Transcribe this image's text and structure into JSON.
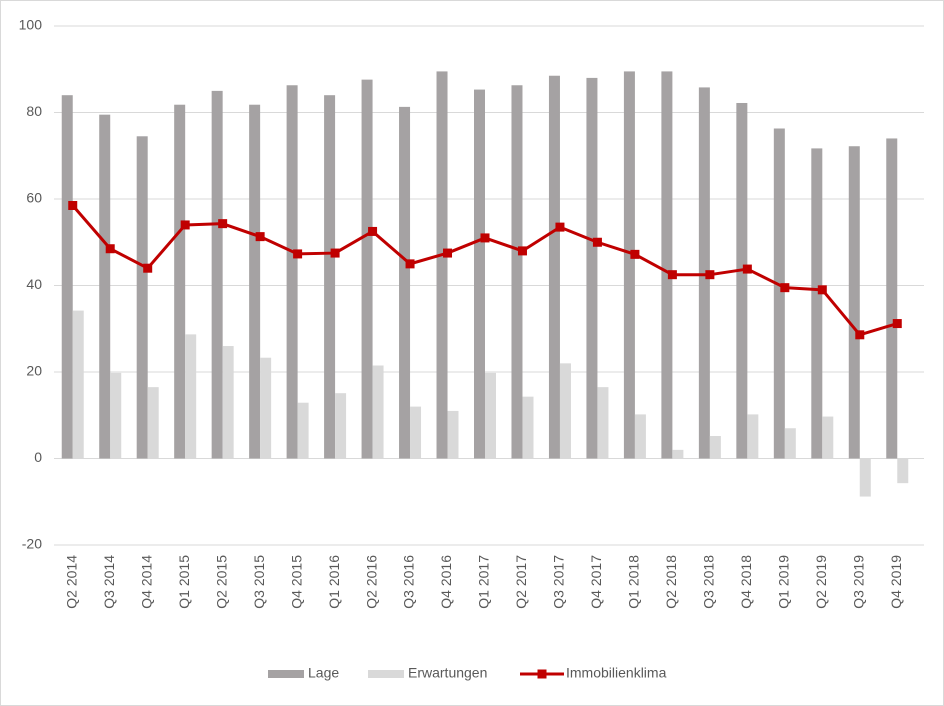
{
  "chart_data": {
    "type": "bar",
    "categories": [
      "Q2 2014",
      "Q3 2014",
      "Q4 2014",
      "Q1 2015",
      "Q2 2015",
      "Q3 2015",
      "Q4 2015",
      "Q1 2016",
      "Q2 2016",
      "Q3 2016",
      "Q4 2016",
      "Q1 2017",
      "Q2 2017",
      "Q3 2017",
      "Q4 2017",
      "Q1 2018",
      "Q2 2018",
      "Q3 2018",
      "Q4 2018",
      "Q1 2019",
      "Q2 2019",
      "Q3 2019",
      "Q4 2019"
    ],
    "series": [
      {
        "name": "Lage",
        "type": "bar",
        "color": "#a5a2a3",
        "values": [
          84,
          79.5,
          74.5,
          81.8,
          85,
          81.8,
          86.3,
          84,
          87.6,
          81.3,
          89.5,
          85.3,
          86.3,
          88.5,
          88,
          89.5,
          89.5,
          85.8,
          82.2,
          76.3,
          71.7,
          72.2,
          74
        ]
      },
      {
        "name": "Erwartungen",
        "type": "bar",
        "color": "#d9d9d9",
        "values": [
          34.2,
          19.8,
          16.5,
          28.7,
          26,
          23.3,
          12.9,
          15.1,
          21.5,
          12,
          11,
          19.8,
          14.3,
          22,
          16.5,
          10.2,
          2,
          5.2,
          10.2,
          7,
          9.7,
          -8.8,
          -5.7
        ]
      },
      {
        "name": "Immobilienklima",
        "type": "line",
        "color": "#c00000",
        "values": [
          58.5,
          48.5,
          44,
          54,
          54.3,
          51.3,
          47.3,
          47.5,
          52.5,
          45,
          47.5,
          51,
          48,
          53.5,
          50,
          47.2,
          42.5,
          42.5,
          43.8,
          39.5,
          39,
          28.6,
          31.2
        ]
      }
    ],
    "ylim": [
      -20,
      100
    ],
    "yticks": [
      -20,
      0,
      20,
      40,
      60,
      80,
      100
    ],
    "grid": true,
    "legend": "bottom"
  }
}
